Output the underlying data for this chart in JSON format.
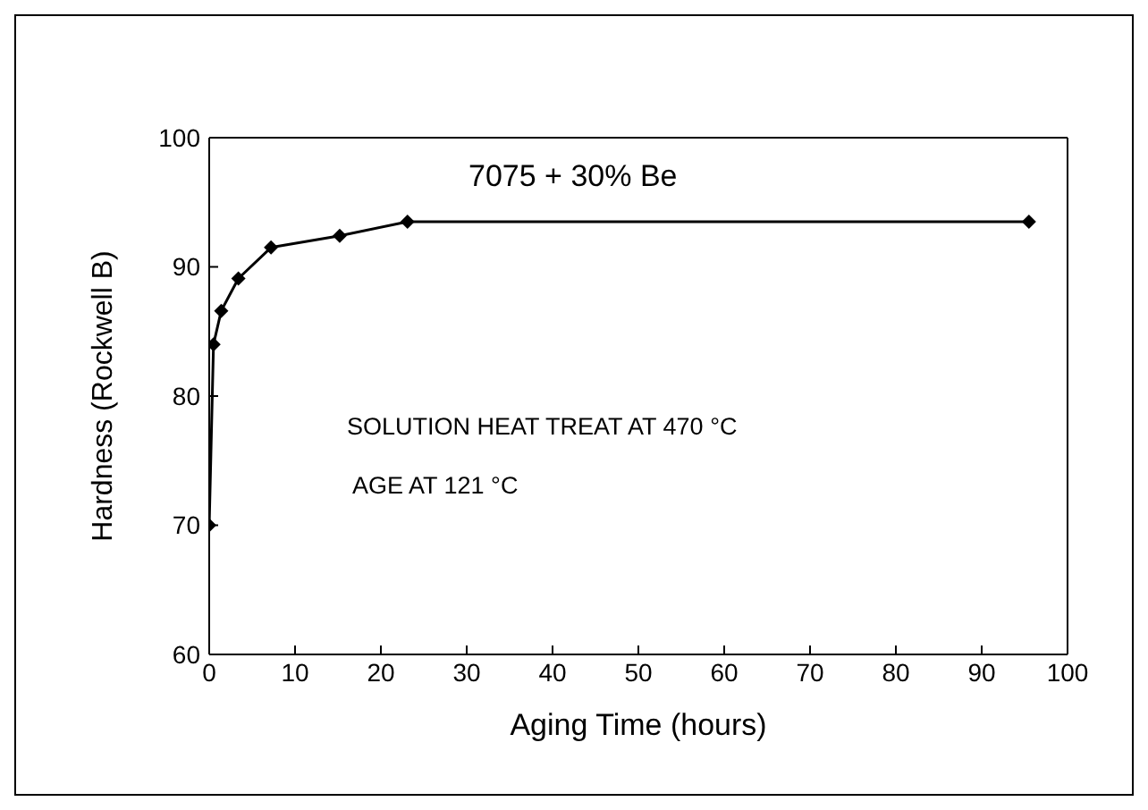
{
  "chart_data": {
    "type": "line",
    "xlabel": "Aging Time (hours)",
    "ylabel": "Hardness (Rockwell B)",
    "annotations": [
      "7075 + 30% Be",
      "SOLUTION HEAT TREAT AT 470 °C",
      "AGE AT 121 °C"
    ],
    "x": [
      0,
      0.5,
      1.4,
      3.4,
      7.2,
      15.2,
      23.1,
      95.5
    ],
    "series": [
      {
        "color": "#000000",
        "values": [
          70,
          84,
          86.6,
          89.1,
          91.5,
          92.4,
          93.5,
          93.5
        ]
      }
    ],
    "xlim": [
      0,
      100
    ],
    "xticks": [
      0,
      10,
      20,
      30,
      40,
      50,
      60,
      70,
      80,
      90,
      100
    ],
    "ylim": [
      60,
      100
    ],
    "yticks": [
      60,
      70,
      80,
      90,
      100
    ],
    "grid": false,
    "legend": false,
    "marker": "diamond",
    "line_style": "solid"
  }
}
